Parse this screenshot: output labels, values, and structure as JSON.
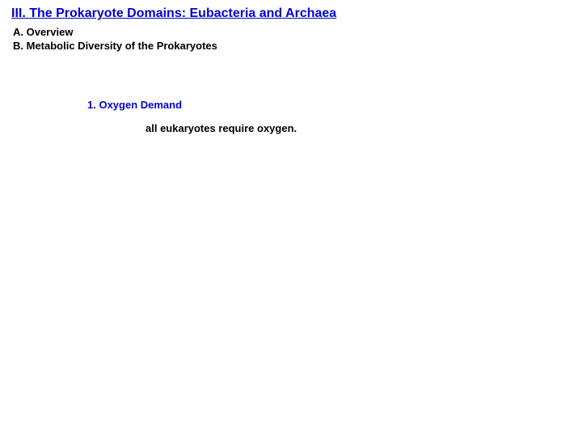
{
  "heading": {
    "text": "III. The Prokaryote Domains: Eubacteria and Archaea",
    "color": "#0202d0",
    "fontsize": 16,
    "underline": true
  },
  "subheadings": {
    "a": "A.  Overview",
    "b": "B. Metabolic Diversity of the Prokaryotes"
  },
  "item1": {
    "text": "1. Oxygen Demand",
    "color": "#0202d0",
    "fontsize": 13
  },
  "body": {
    "text": "all eukaryotes require oxygen.",
    "fontsize": 13
  },
  "background_color": "#ffffff"
}
